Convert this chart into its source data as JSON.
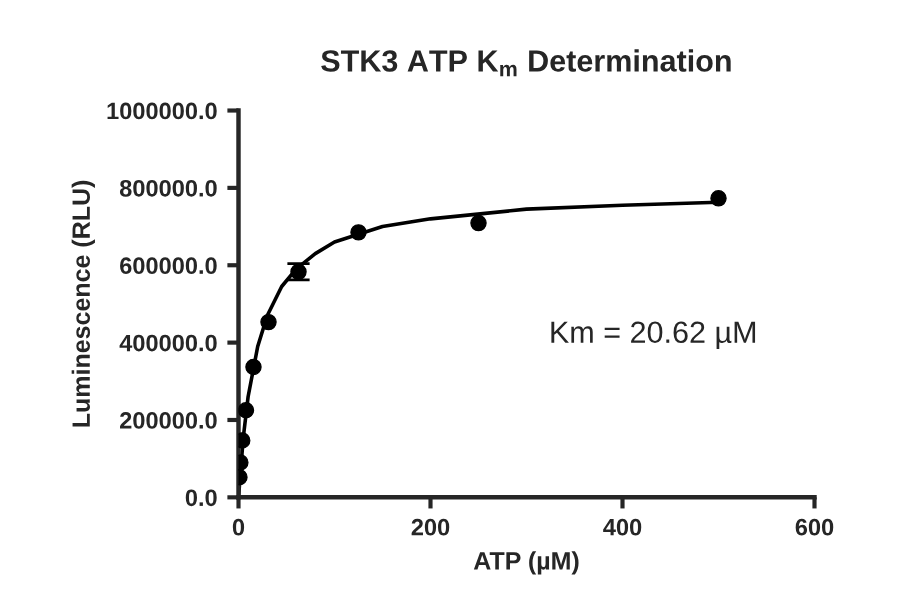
{
  "chart_data": {
    "type": "scatter",
    "title": "STK3 ATP K$_{m}$ Determination",
    "xlabel": "ATP (µM)",
    "ylabel": "Luminescence (RLU)",
    "annotations": [
      "Km = 20.62 µM"
    ],
    "series": [
      {
        "color": "#000000",
        "marker": "circle",
        "x": [
          0.98,
          1.95,
          3.9,
          7.8,
          15.6,
          31.25,
          62.5,
          125,
          250,
          500
        ],
        "values": [
          52000,
          90000,
          147000,
          225000,
          337000,
          453000,
          583000,
          685000,
          709000,
          773000
        ],
        "errors": [
          null,
          null,
          null,
          null,
          null,
          null,
          21000,
          null,
          null,
          null
        ]
      },
      {
        "type": "line",
        "color": "#000000",
        "marker": "none",
        "line_style": "solid",
        "x": [
          0,
          5,
          10,
          20,
          30,
          45,
          60,
          80,
          100,
          150,
          200,
          300,
          400,
          500
        ],
        "values": [
          0,
          155000,
          260000,
          390000,
          470000,
          545000,
          590000,
          630000,
          660000,
          700000,
          720000,
          745000,
          755000,
          763000
        ]
      }
    ],
    "xlim": [
      0,
      600
    ],
    "xticks": [
      0,
      200,
      400,
      600
    ],
    "ylim": [
      0,
      1000000
    ],
    "yticks": [
      {
        "value": 0,
        "label": "0.0"
      },
      {
        "value": 200000,
        "label": "200000.0"
      },
      {
        "value": 400000,
        "label": "400000.0"
      },
      {
        "value": 600000,
        "label": "600000.0"
      },
      {
        "value": 800000,
        "label": "800000.0"
      },
      {
        "value": 1000000,
        "label": "1000000.0"
      }
    ],
    "grid": false,
    "legend": false
  }
}
